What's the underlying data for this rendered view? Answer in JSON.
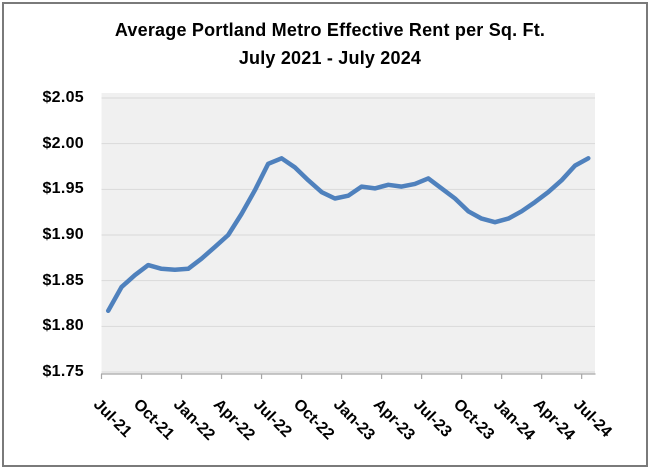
{
  "window": {
    "border_color": "#7a7a7a",
    "background": "#ffffff"
  },
  "chart_data": {
    "type": "line",
    "title_line1": "Average Portland Metro Effective Rent per Sq. Ft.",
    "title_line2": "July 2021 - July 2024",
    "x": [
      "Jul-21",
      "Aug-21",
      "Sep-21",
      "Oct-21",
      "Nov-21",
      "Dec-21",
      "Jan-22",
      "Feb-22",
      "Mar-22",
      "Apr-22",
      "May-22",
      "Jun-22",
      "Jul-22",
      "Aug-22",
      "Sep-22",
      "Oct-22",
      "Nov-22",
      "Dec-22",
      "Jan-23",
      "Feb-23",
      "Mar-23",
      "Apr-23",
      "May-23",
      "Jun-23",
      "Jul-23",
      "Aug-23",
      "Sep-23",
      "Oct-23",
      "Nov-23",
      "Dec-23",
      "Jan-24",
      "Feb-24",
      "Mar-24",
      "Apr-24",
      "May-24",
      "Jun-24",
      "Jul-24"
    ],
    "values": [
      1.817,
      1.843,
      1.856,
      1.867,
      1.863,
      1.862,
      1.863,
      1.874,
      1.887,
      1.9,
      1.923,
      1.949,
      1.978,
      1.984,
      1.974,
      1.96,
      1.947,
      1.94,
      1.943,
      1.953,
      1.951,
      1.955,
      1.953,
      1.956,
      1.962,
      1.951,
      1.94,
      1.926,
      1.918,
      1.914,
      1.918,
      1.926,
      1.936,
      1.947,
      1.96,
      1.976,
      1.984
    ],
    "x_tick_labels": [
      "Jul-21",
      "Oct-21",
      "Jan-22",
      "Apr-22",
      "Jul-22",
      "Oct-22",
      "Jan-23",
      "Apr-23",
      "Jul-23",
      "Oct-23",
      "Jan-24",
      "Apr-24",
      "Jul-24"
    ],
    "x_label_interval": 3,
    "y_tick_labels": [
      "$2.05",
      "$2.00",
      "$1.95",
      "$1.90",
      "$1.85",
      "$1.80",
      "$1.75"
    ],
    "y_tick_values": [
      2.05,
      2.0,
      1.95,
      1.9,
      1.85,
      1.8,
      1.75
    ],
    "ylim": [
      1.75,
      2.05
    ],
    "grid": true,
    "legend": false,
    "line_color": "#4F81BD",
    "plot_bg": "#F0F0F0",
    "gridline_color": "#D9D9D9",
    "axis_color": "#A6A6A6",
    "text_color": "#000000"
  }
}
